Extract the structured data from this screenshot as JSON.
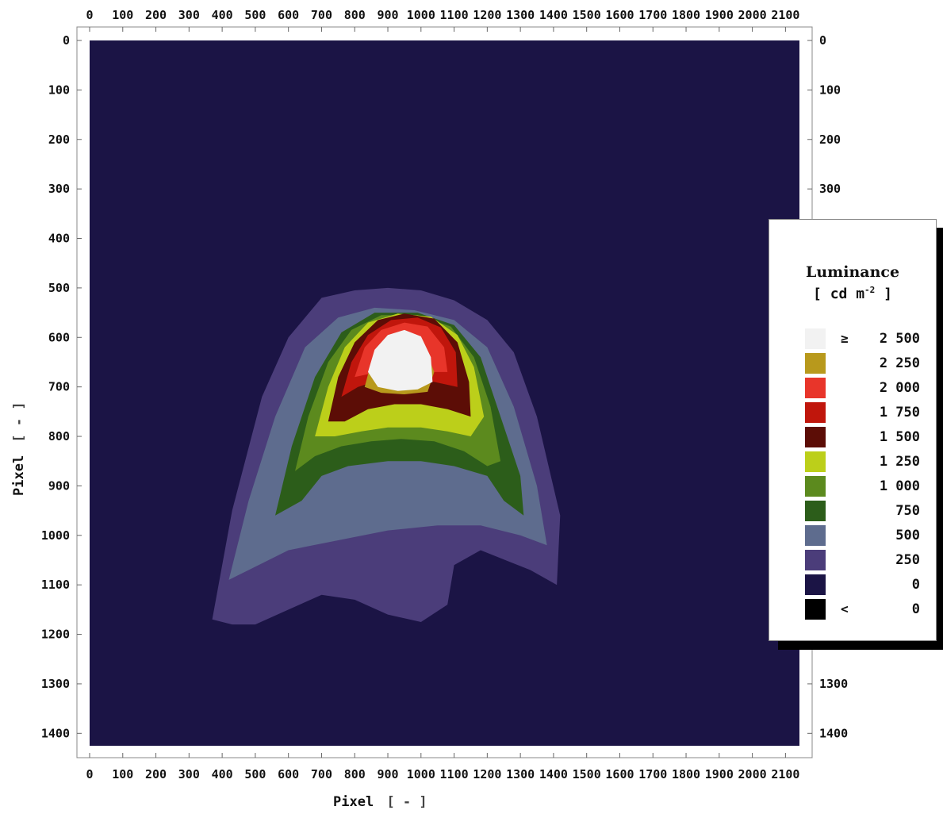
{
  "chart_data": {
    "type": "heatmap",
    "title": "",
    "xlabel": "Pixel",
    "xlabel_unit": "[ - ]",
    "ylabel": "Pixel",
    "ylabel_unit": "[ - ]",
    "xlim": [
      0,
      2150
    ],
    "ylim": [
      1425,
      0
    ],
    "x_ticks": [
      0,
      100,
      200,
      300,
      400,
      500,
      600,
      700,
      800,
      900,
      1000,
      1100,
      1200,
      1300,
      1400,
      1500,
      1600,
      1700,
      1800,
      1900,
      2000,
      2100
    ],
    "y_ticks": [
      0,
      100,
      200,
      300,
      400,
      500,
      600,
      700,
      800,
      900,
      1000,
      1100,
      1200,
      1300,
      1400
    ],
    "y_ticks_right": [
      0,
      100,
      200,
      300,
      1300,
      1400
    ],
    "background_color": "#1b1445",
    "grid": false,
    "legend": {
      "title": "Luminance",
      "unit_prefix": "[ cd m",
      "unit_exp": "-2",
      "unit_suffix": " ]",
      "position": "right",
      "entries": [
        {
          "cmp": "≥",
          "label": "2 500",
          "color": "#f2f2f2"
        },
        {
          "cmp": "",
          "label": "2 250",
          "color": "#b8991c"
        },
        {
          "cmp": "",
          "label": "2 000",
          "color": "#e8352a"
        },
        {
          "cmp": "",
          "label": "1 750",
          "color": "#c0160c"
        },
        {
          "cmp": "",
          "label": "1 500",
          "color": "#5c0d06"
        },
        {
          "cmp": "",
          "label": "1 250",
          "color": "#bccf1a"
        },
        {
          "cmp": "",
          "label": "1 000",
          "color": "#5c8a1e"
        },
        {
          "cmp": "",
          "label": "750",
          "color": "#2c5d1a"
        },
        {
          "cmp": "",
          "label": "500",
          "color": "#5e6c8e"
        },
        {
          "cmp": "",
          "label": "250",
          "color": "#4b3d7a"
        },
        {
          "cmp": "",
          "label": "0",
          "color": "#1b1445"
        },
        {
          "cmp": "<",
          "label": "0",
          "color": "#000000"
        }
      ]
    },
    "regions": [
      {
        "level": "250",
        "polygon": [
          [
            370,
            1170
          ],
          [
            430,
            950
          ],
          [
            520,
            720
          ],
          [
            600,
            600
          ],
          [
            700,
            520
          ],
          [
            800,
            505
          ],
          [
            900,
            500
          ],
          [
            1000,
            505
          ],
          [
            1100,
            525
          ],
          [
            1200,
            565
          ],
          [
            1280,
            630
          ],
          [
            1350,
            760
          ],
          [
            1420,
            960
          ],
          [
            1410,
            1100
          ],
          [
            1330,
            1070
          ],
          [
            1180,
            1030
          ],
          [
            1100,
            1060
          ],
          [
            1080,
            1140
          ],
          [
            1000,
            1175
          ],
          [
            900,
            1160
          ],
          [
            800,
            1130
          ],
          [
            700,
            1120
          ],
          [
            600,
            1150
          ],
          [
            500,
            1180
          ],
          [
            430,
            1180
          ]
        ]
      },
      {
        "level": "500",
        "polygon": [
          [
            420,
            1090
          ],
          [
            480,
            930
          ],
          [
            560,
            760
          ],
          [
            650,
            620
          ],
          [
            750,
            560
          ],
          [
            860,
            540
          ],
          [
            980,
            545
          ],
          [
            1100,
            565
          ],
          [
            1200,
            620
          ],
          [
            1280,
            740
          ],
          [
            1350,
            900
          ],
          [
            1380,
            1020
          ],
          [
            1300,
            1000
          ],
          [
            1180,
            980
          ],
          [
            1050,
            980
          ],
          [
            900,
            990
          ],
          [
            750,
            1010
          ],
          [
            600,
            1030
          ],
          [
            480,
            1070
          ]
        ]
      },
      {
        "level": "750",
        "polygon": [
          [
            560,
            960
          ],
          [
            610,
            820
          ],
          [
            680,
            680
          ],
          [
            760,
            590
          ],
          [
            860,
            550
          ],
          [
            990,
            550
          ],
          [
            1100,
            575
          ],
          [
            1180,
            640
          ],
          [
            1240,
            760
          ],
          [
            1300,
            880
          ],
          [
            1310,
            960
          ],
          [
            1250,
            930
          ],
          [
            1200,
            880
          ],
          [
            1100,
            860
          ],
          [
            1000,
            850
          ],
          [
            900,
            850
          ],
          [
            780,
            860
          ],
          [
            700,
            880
          ],
          [
            640,
            930
          ]
        ]
      },
      {
        "level": "1 000",
        "polygon": [
          [
            620,
            870
          ],
          [
            660,
            760
          ],
          [
            720,
            650
          ],
          [
            790,
            585
          ],
          [
            880,
            555
          ],
          [
            990,
            555
          ],
          [
            1090,
            578
          ],
          [
            1160,
            640
          ],
          [
            1210,
            740
          ],
          [
            1240,
            850
          ],
          [
            1200,
            860
          ],
          [
            1130,
            830
          ],
          [
            1040,
            810
          ],
          [
            940,
            805
          ],
          [
            850,
            810
          ],
          [
            760,
            820
          ],
          [
            680,
            840
          ]
        ]
      },
      {
        "level": "1 250",
        "polygon": [
          [
            680,
            800
          ],
          [
            720,
            700
          ],
          [
            770,
            620
          ],
          [
            840,
            570
          ],
          [
            930,
            552
          ],
          [
            1030,
            558
          ],
          [
            1110,
            595
          ],
          [
            1160,
            660
          ],
          [
            1190,
            760
          ],
          [
            1150,
            800
          ],
          [
            1080,
            790
          ],
          [
            1000,
            782
          ],
          [
            900,
            782
          ],
          [
            820,
            790
          ],
          [
            740,
            800
          ]
        ]
      },
      {
        "level": "1 500",
        "polygon": [
          [
            720,
            770
          ],
          [
            750,
            680
          ],
          [
            800,
            610
          ],
          [
            870,
            565
          ],
          [
            950,
            552
          ],
          [
            1040,
            562
          ],
          [
            1110,
            610
          ],
          [
            1145,
            690
          ],
          [
            1150,
            760
          ],
          [
            1080,
            745
          ],
          [
            1000,
            735
          ],
          [
            920,
            735
          ],
          [
            840,
            745
          ],
          [
            770,
            770
          ]
        ]
      },
      {
        "level": "1 750",
        "polygon": [
          [
            760,
            720
          ],
          [
            790,
            650
          ],
          [
            840,
            595
          ],
          [
            910,
            565
          ],
          [
            990,
            560
          ],
          [
            1060,
            580
          ],
          [
            1105,
            630
          ],
          [
            1110,
            700
          ],
          [
            1040,
            690
          ],
          [
            960,
            680
          ],
          [
            880,
            685
          ],
          [
            810,
            700
          ]
        ]
      },
      {
        "level": "2 000",
        "polygon": [
          [
            800,
            680
          ],
          [
            830,
            620
          ],
          [
            880,
            585
          ],
          [
            950,
            570
          ],
          [
            1020,
            578
          ],
          [
            1070,
            620
          ],
          [
            1080,
            670
          ],
          [
            1020,
            670
          ],
          [
            950,
            665
          ],
          [
            870,
            670
          ]
        ]
      },
      {
        "level": "2 250",
        "polygon": [
          [
            830,
            700
          ],
          [
            850,
            650
          ],
          [
            900,
            610
          ],
          [
            960,
            600
          ],
          [
            1010,
            620
          ],
          [
            1040,
            670
          ],
          [
            1020,
            710
          ],
          [
            950,
            715
          ],
          [
            880,
            712
          ]
        ]
      },
      {
        "level": "≥ 2 500",
        "polygon": [
          [
            840,
            670
          ],
          [
            860,
            625
          ],
          [
            900,
            595
          ],
          [
            950,
            585
          ],
          [
            1000,
            598
          ],
          [
            1030,
            640
          ],
          [
            1035,
            690
          ],
          [
            990,
            705
          ],
          [
            930,
            708
          ],
          [
            870,
            700
          ]
        ]
      }
    ]
  }
}
